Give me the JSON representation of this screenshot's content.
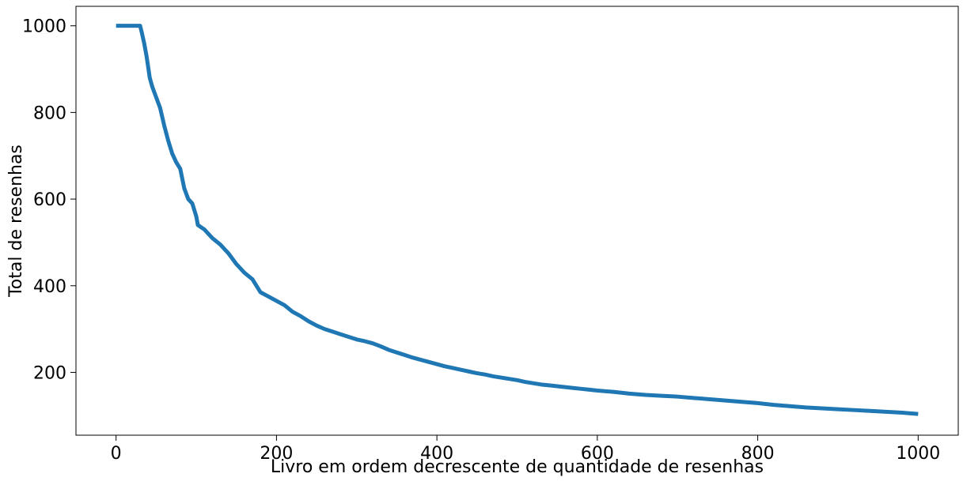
{
  "chart_data": {
    "type": "line",
    "title": "",
    "xlabel": "Livro em ordem decrescente de quantidade de resenhas",
    "ylabel": "Total de resenhas",
    "xlim": [
      -50,
      1050
    ],
    "ylim": [
      55,
      1045
    ],
    "xticks": [
      0,
      200,
      400,
      600,
      800,
      1000
    ],
    "yticks": [
      200,
      400,
      600,
      800,
      1000
    ],
    "grid": false,
    "legend": "none",
    "series": [
      {
        "color": "#1f77b4",
        "points": [
          [
            0,
            1000
          ],
          [
            30,
            1000
          ],
          [
            32,
            985
          ],
          [
            35,
            960
          ],
          [
            38,
            930
          ],
          [
            40,
            905
          ],
          [
            42,
            880
          ],
          [
            45,
            860
          ],
          [
            50,
            835
          ],
          [
            55,
            810
          ],
          [
            60,
            770
          ],
          [
            65,
            735
          ],
          [
            70,
            705
          ],
          [
            75,
            685
          ],
          [
            80,
            670
          ],
          [
            85,
            625
          ],
          [
            90,
            600
          ],
          [
            95,
            590
          ],
          [
            100,
            560
          ],
          [
            102,
            540
          ],
          [
            110,
            530
          ],
          [
            120,
            510
          ],
          [
            130,
            495
          ],
          [
            140,
            475
          ],
          [
            150,
            450
          ],
          [
            160,
            430
          ],
          [
            170,
            415
          ],
          [
            180,
            385
          ],
          [
            190,
            375
          ],
          [
            200,
            365
          ],
          [
            210,
            355
          ],
          [
            220,
            340
          ],
          [
            230,
            330
          ],
          [
            240,
            318
          ],
          [
            250,
            308
          ],
          [
            260,
            300
          ],
          [
            270,
            294
          ],
          [
            280,
            288
          ],
          [
            290,
            282
          ],
          [
            300,
            276
          ],
          [
            310,
            272
          ],
          [
            320,
            267
          ],
          [
            330,
            260
          ],
          [
            340,
            252
          ],
          [
            350,
            246
          ],
          [
            360,
            240
          ],
          [
            370,
            234
          ],
          [
            380,
            229
          ],
          [
            390,
            224
          ],
          [
            400,
            219
          ],
          [
            410,
            214
          ],
          [
            420,
            210
          ],
          [
            430,
            206
          ],
          [
            440,
            202
          ],
          [
            450,
            198
          ],
          [
            460,
            195
          ],
          [
            470,
            191
          ],
          [
            480,
            188
          ],
          [
            490,
            185
          ],
          [
            500,
            182
          ],
          [
            510,
            178
          ],
          [
            520,
            175
          ],
          [
            530,
            172
          ],
          [
            540,
            170
          ],
          [
            550,
            168
          ],
          [
            560,
            166
          ],
          [
            570,
            164
          ],
          [
            580,
            162
          ],
          [
            590,
            160
          ],
          [
            600,
            158
          ],
          [
            620,
            155
          ],
          [
            640,
            151
          ],
          [
            660,
            148
          ],
          [
            680,
            146
          ],
          [
            700,
            144
          ],
          [
            720,
            141
          ],
          [
            740,
            138
          ],
          [
            760,
            135
          ],
          [
            780,
            132
          ],
          [
            800,
            129
          ],
          [
            820,
            125
          ],
          [
            840,
            122
          ],
          [
            860,
            119
          ],
          [
            880,
            117
          ],
          [
            900,
            115
          ],
          [
            920,
            113
          ],
          [
            940,
            111
          ],
          [
            960,
            109
          ],
          [
            980,
            107
          ],
          [
            1000,
            104
          ]
        ]
      }
    ]
  }
}
